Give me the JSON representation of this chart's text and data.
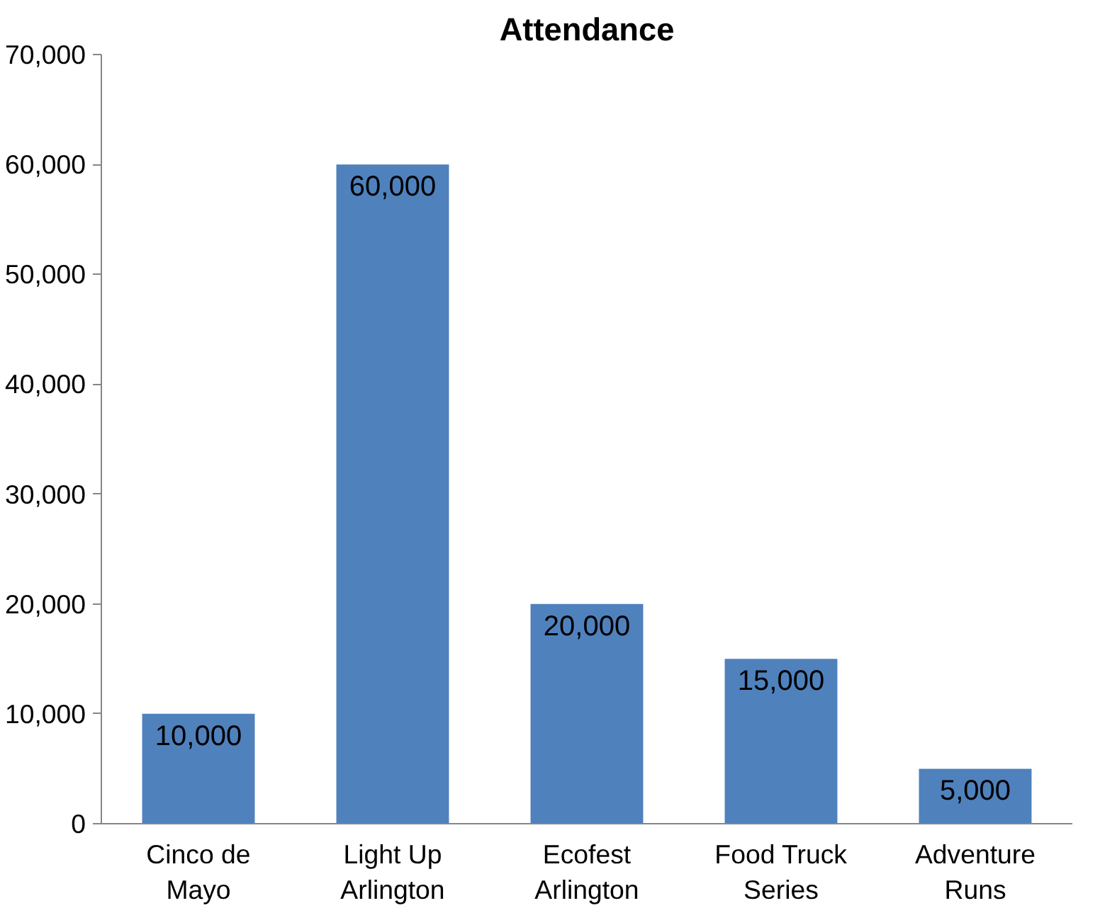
{
  "chart_data": {
    "type": "bar",
    "title": "Attendance",
    "categories": [
      "Cinco de Mayo",
      "Light Up Arlington",
      "Ecofest Arlington",
      "Food Truck Series",
      "Adventure Runs"
    ],
    "values": [
      10000,
      60000,
      20000,
      15000,
      5000
    ],
    "color": "#4f81bd",
    "ylim": [
      0,
      70000
    ],
    "yticks": [
      {
        "value": 0,
        "label": "0"
      },
      {
        "value": 10000,
        "label": "10,000"
      },
      {
        "value": 20000,
        "label": "20,000"
      },
      {
        "value": 30000,
        "label": "30,000"
      },
      {
        "value": 40000,
        "label": "40,000"
      },
      {
        "value": 50000,
        "label": "50,000"
      },
      {
        "value": 60000,
        "label": "60,000"
      },
      {
        "value": 70000,
        "label": "70,000"
      }
    ],
    "value_labels": [
      "10,000",
      "60,000",
      "20,000",
      "15,000",
      "5,000"
    ],
    "grid": false
  }
}
